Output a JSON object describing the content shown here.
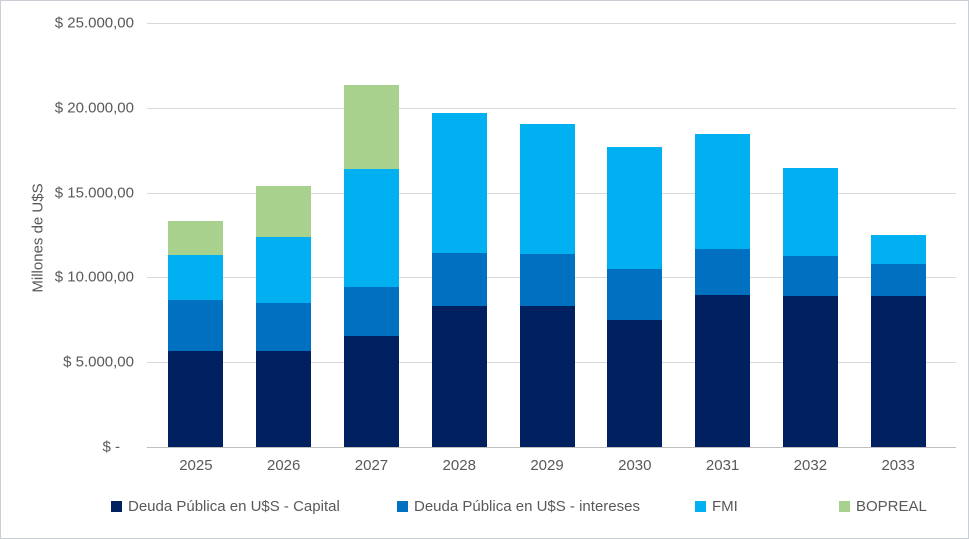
{
  "chart_data": {
    "type": "bar",
    "stacked": true,
    "title": "",
    "xlabel": "",
    "ylabel": "Millones de U$S",
    "categories": [
      "2025",
      "2026",
      "2027",
      "2028",
      "2029",
      "2030",
      "2031",
      "2032",
      "2033"
    ],
    "series": [
      {
        "name": "Deuda Pública en U$S - Capital",
        "color": "#002060",
        "values": [
          5650,
          5650,
          6550,
          8300,
          8300,
          7500,
          8950,
          8900,
          8900
        ]
      },
      {
        "name": "Deuda Pública en U$S - intereses",
        "color": "#0070C0",
        "values": [
          3000,
          2850,
          2870,
          3150,
          3100,
          3000,
          2750,
          2350,
          1870
        ]
      },
      {
        "name": "FMI",
        "color": "#00B0F0",
        "values": [
          2650,
          3900,
          6950,
          8250,
          7650,
          7200,
          6750,
          5200,
          1730
        ]
      },
      {
        "name": "BOPREAL",
        "color": "#A9D18E",
        "values": [
          2030,
          3000,
          5000,
          0,
          0,
          0,
          0,
          0,
          0
        ]
      }
    ],
    "ylim": [
      0,
      25000
    ],
    "ytick_step": 5000,
    "y_tick_labels": [
      "$ -",
      "$ 5.000,00",
      "$ 10.000,00",
      "$ 15.000,00",
      "$ 20.000,00",
      "$ 25.000,00"
    ],
    "grid": true,
    "legend_position": "bottom"
  },
  "colors": {
    "gridline": "#D9D9D9",
    "axis_line": "#BFBFBF",
    "tick_text": "#595959",
    "frame_border": "#C9CFD4"
  }
}
